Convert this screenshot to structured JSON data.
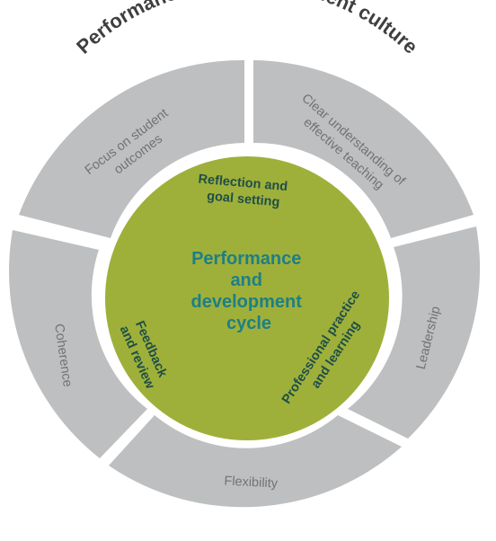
{
  "title": "Performance and development culture",
  "center_title": [
    "Performance",
    "and",
    "development",
    "cycle"
  ],
  "outer_segments": [
    {
      "key": "focus",
      "lines": [
        "Focus on student",
        "outcomes"
      ]
    },
    {
      "key": "clear",
      "lines": [
        "Clear understanding of",
        "effective teaching"
      ]
    },
    {
      "key": "leadership",
      "lines": [
        "Leadership"
      ]
    },
    {
      "key": "flexibility",
      "lines": [
        "Flexibility"
      ]
    },
    {
      "key": "coherence",
      "lines": [
        "Coherence"
      ]
    }
  ],
  "inner_labels": {
    "reflection": [
      "Reflection and",
      "goal setting"
    ],
    "professional": [
      "Professional practice",
      "and learning"
    ],
    "feedback": [
      "Feedback",
      "and review"
    ]
  },
  "colors": {
    "outer_segment": "#bebfc0",
    "inner_circle": "#9fb03a",
    "title_text": "#3e3f41",
    "outer_text": "#707274",
    "inner_text": "#1f4f48",
    "center_text": "#1d7f86"
  }
}
